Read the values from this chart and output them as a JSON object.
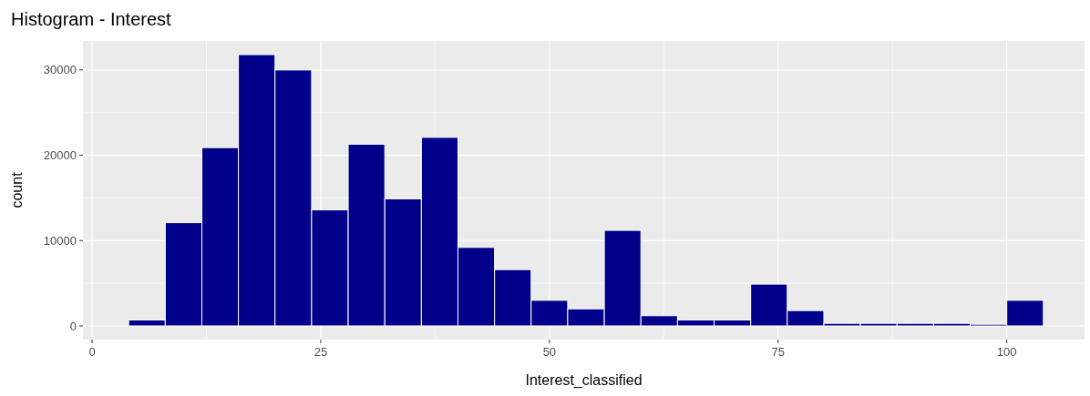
{
  "chart_data": {
    "type": "histogram",
    "title": "Histogram - Interest",
    "xlabel": "Interest_classified",
    "ylabel": "count",
    "bins": [
      4,
      8,
      12,
      16,
      20,
      24,
      28,
      32,
      36,
      40,
      44,
      48,
      52,
      56,
      60,
      64,
      68,
      72,
      76,
      80,
      84,
      88,
      92,
      96,
      100,
      104
    ],
    "values": [
      700,
      12100,
      20900,
      31800,
      30000,
      13600,
      21300,
      14900,
      22100,
      9200,
      6600,
      3000,
      2000,
      11200,
      1200,
      700,
      700,
      4900,
      1800,
      300,
      300,
      300,
      300,
      200,
      3000
    ],
    "color": "#00008b",
    "xlim": [
      -1,
      108.5
    ],
    "xticks": [
      0,
      25,
      50,
      75,
      100
    ],
    "ylim": [
      -1600,
      33400
    ],
    "yticks": [
      0,
      10000,
      20000,
      30000
    ],
    "grid": true
  }
}
